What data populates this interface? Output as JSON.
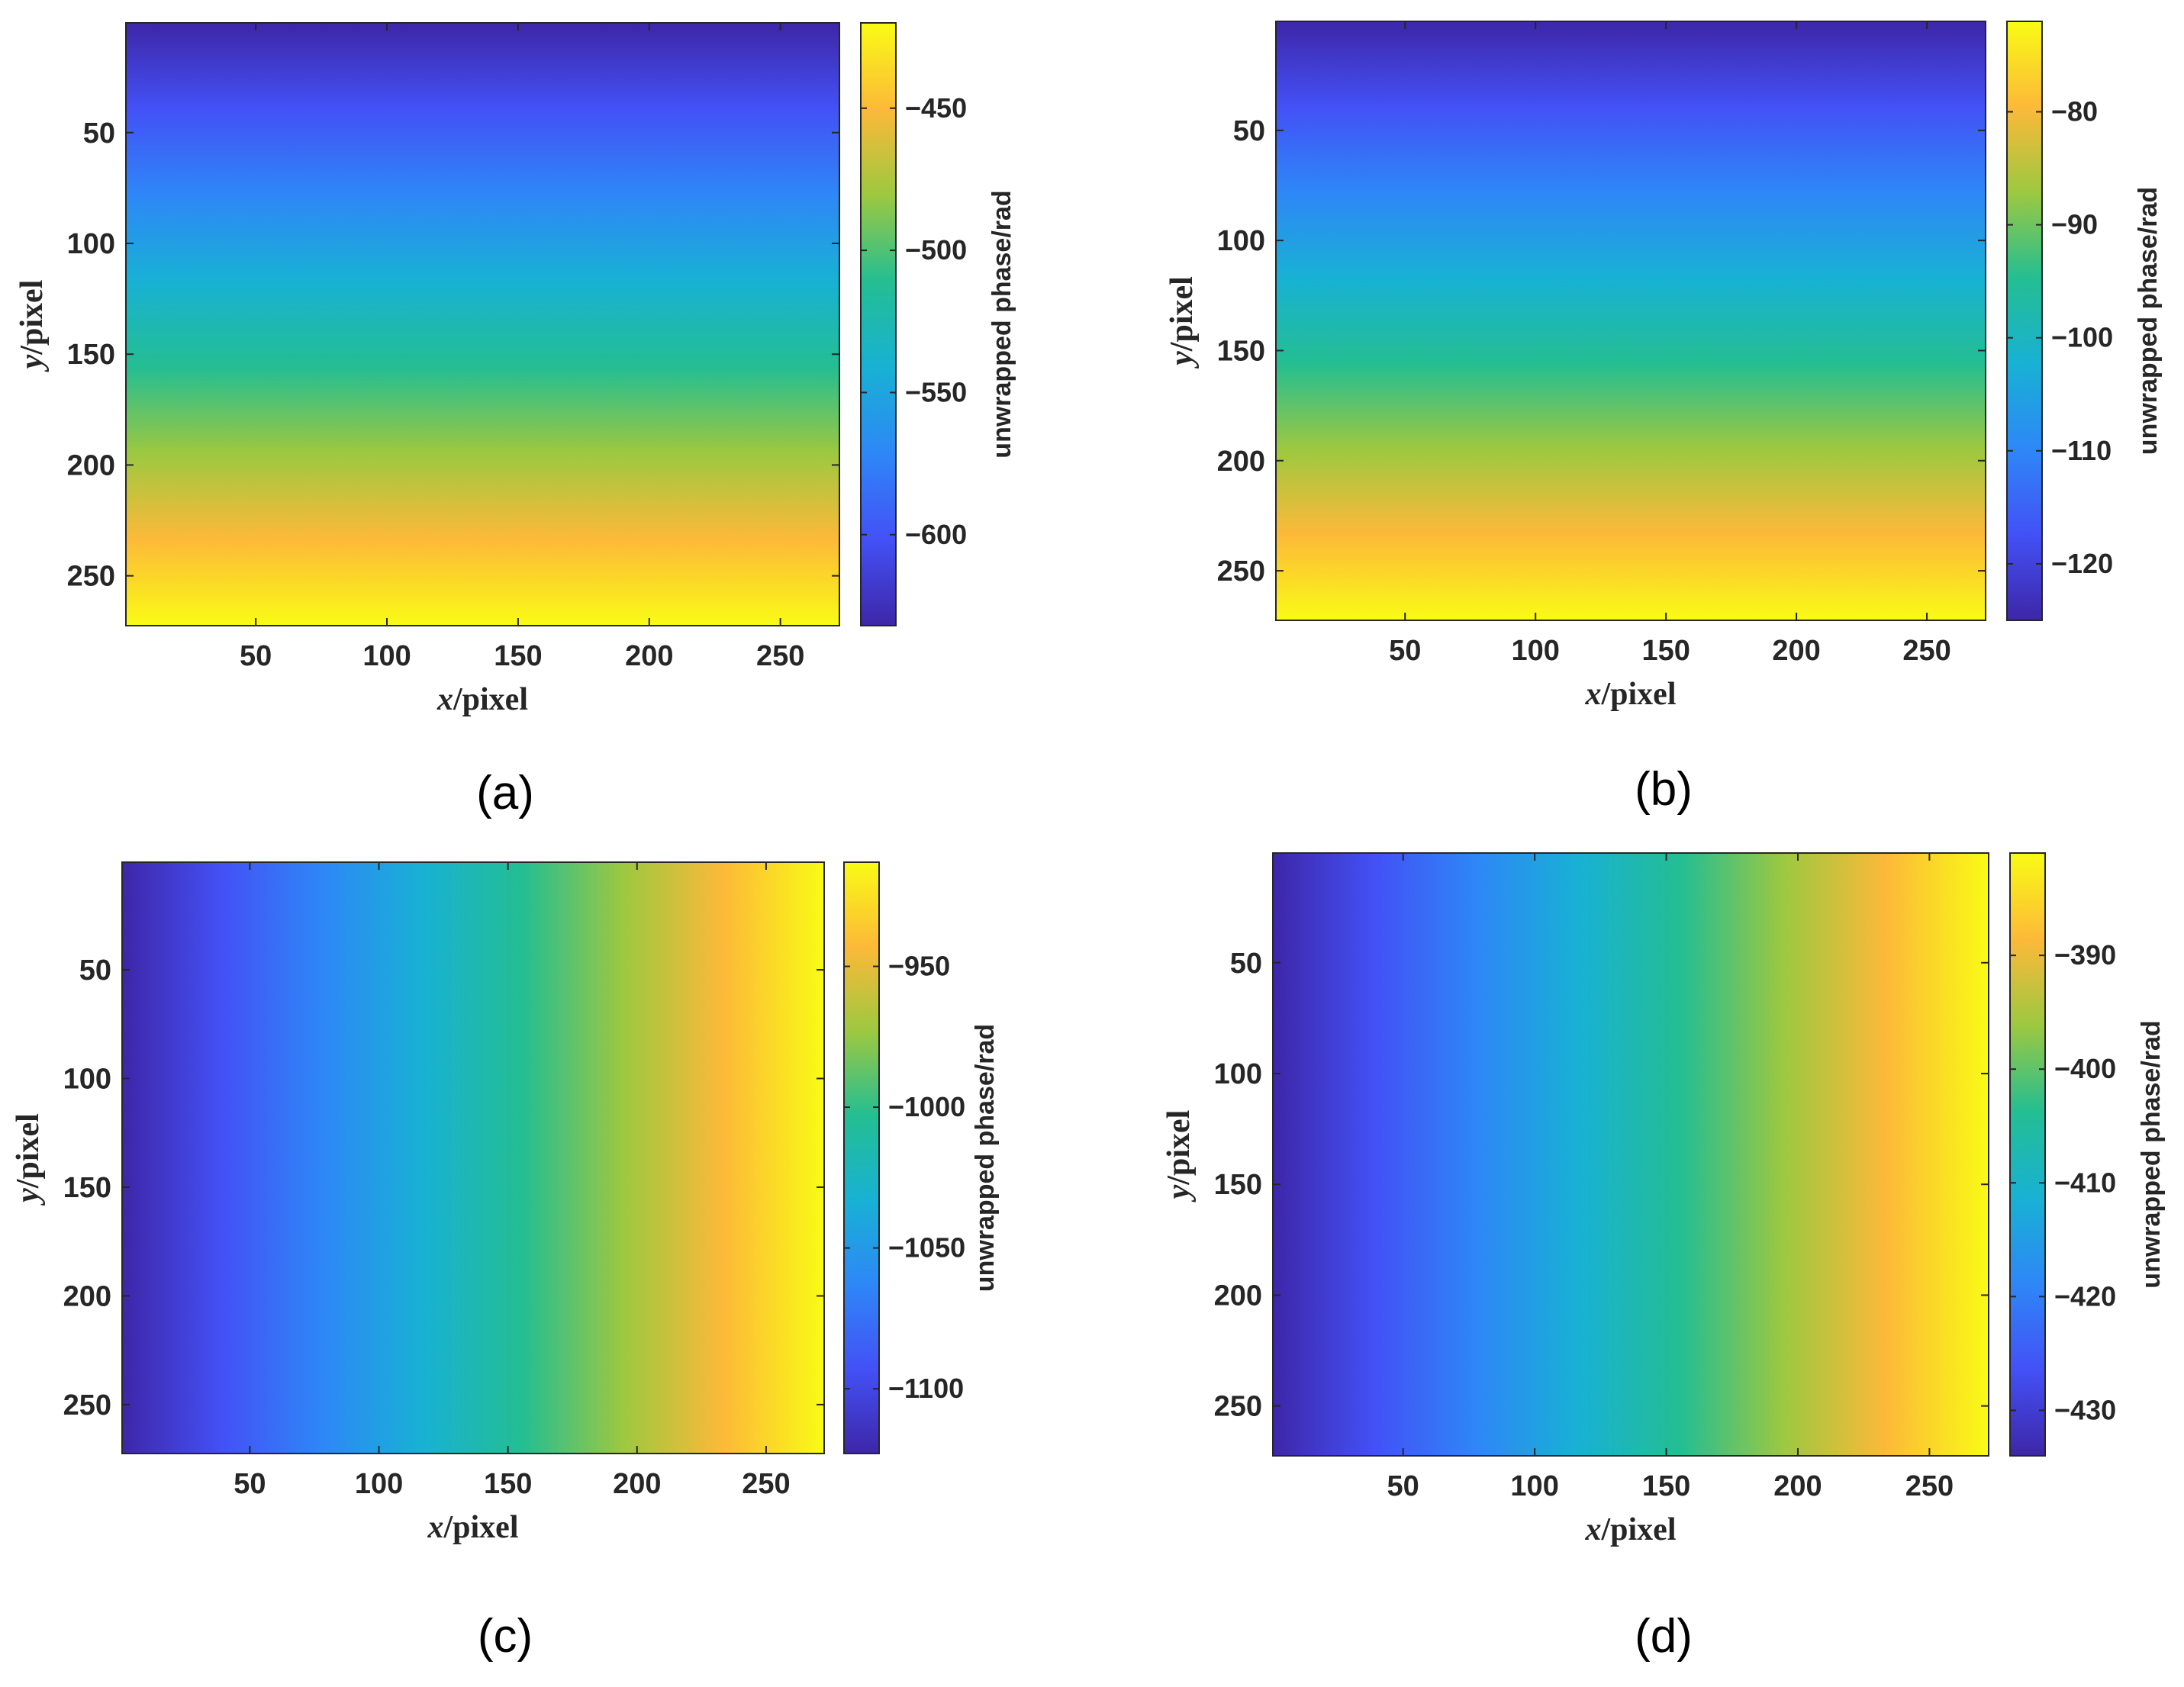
{
  "colormap": [
    "#3e26a8",
    "#4351f6",
    "#2e87f7",
    "#18b1d4",
    "#24be92",
    "#9dc840",
    "#fdb939",
    "#f9fb15"
  ],
  "chart_data": [
    {
      "type": "heatmap",
      "panel_label": "(a)",
      "gradient_direction": "vertical",
      "description_values": "unwrapped phase increases from top (y=1) to bottom (y=272), constant along x",
      "xlabel": {
        "italic": "x",
        "rest": "/pixel"
      },
      "ylabel": {
        "italic": "y",
        "rest": "/pixel"
      },
      "xlim": [
        1,
        272
      ],
      "ylim": [
        1,
        272
      ],
      "xticks": [
        50,
        100,
        150,
        200,
        250
      ],
      "yticks": [
        50,
        100,
        150,
        200,
        250
      ],
      "colorbar": {
        "label": "unwrapped phase/rad",
        "clim": [
          -632,
          -420
        ],
        "ticks": [
          -600,
          -550,
          -500,
          -450
        ],
        "tick_labels": [
          "−600",
          "−550",
          "−500",
          "−450"
        ]
      }
    },
    {
      "type": "heatmap",
      "panel_label": "(b)",
      "gradient_direction": "vertical",
      "description_values": "unwrapped phase increases from top (y=1) to bottom (y=272), constant along x",
      "xlabel": {
        "italic": "x",
        "rest": "/pixel"
      },
      "ylabel": {
        "italic": "y",
        "rest": "/pixel"
      },
      "xlim": [
        1,
        272
      ],
      "ylim": [
        1,
        272
      ],
      "xticks": [
        50,
        100,
        150,
        200,
        250
      ],
      "yticks": [
        50,
        100,
        150,
        200,
        250
      ],
      "colorbar": {
        "label": "unwrapped phase/rad",
        "clim": [
          -125,
          -72
        ],
        "ticks": [
          -120,
          -110,
          -100,
          -90,
          -80
        ],
        "tick_labels": [
          "−120",
          "−110",
          "−100",
          "−90",
          "−80"
        ]
      }
    },
    {
      "type": "heatmap",
      "panel_label": "(c)",
      "gradient_direction": "horizontal",
      "description_values": "unwrapped phase increases from left (x=1) to right (x=272), constant along y",
      "xlabel": {
        "italic": "x",
        "rest": "/pixel"
      },
      "ylabel": {
        "italic": "y",
        "rest": "/pixel"
      },
      "xlim": [
        1,
        272
      ],
      "ylim": [
        1,
        272
      ],
      "xticks": [
        50,
        100,
        150,
        200,
        250
      ],
      "yticks": [
        50,
        100,
        150,
        200,
        250
      ],
      "colorbar": {
        "label": "unwrapped phase/rad",
        "clim": [
          -1123,
          -913
        ],
        "ticks": [
          -1100,
          -1050,
          -1000,
          -950
        ],
        "tick_labels": [
          "−1100",
          "−1050",
          "−1000",
          "−950"
        ]
      }
    },
    {
      "type": "heatmap",
      "panel_label": "(d)",
      "gradient_direction": "horizontal",
      "description_values": "unwrapped phase increases from left (x=1) to right (x=272), constant along y",
      "xlabel": {
        "italic": "x",
        "rest": "/pixel"
      },
      "ylabel": {
        "italic": "y",
        "rest": "/pixel"
      },
      "xlim": [
        1,
        272
      ],
      "ylim": [
        1,
        272
      ],
      "xticks": [
        50,
        100,
        150,
        200,
        250
      ],
      "yticks": [
        50,
        100,
        150,
        200,
        250
      ],
      "colorbar": {
        "label": "unwrapped phase/rad",
        "clim": [
          -434,
          -381
        ],
        "ticks": [
          -430,
          -420,
          -410,
          -400,
          -390
        ],
        "tick_labels": [
          "−430",
          "−420",
          "−410",
          "−400",
          "−390"
        ]
      }
    }
  ]
}
